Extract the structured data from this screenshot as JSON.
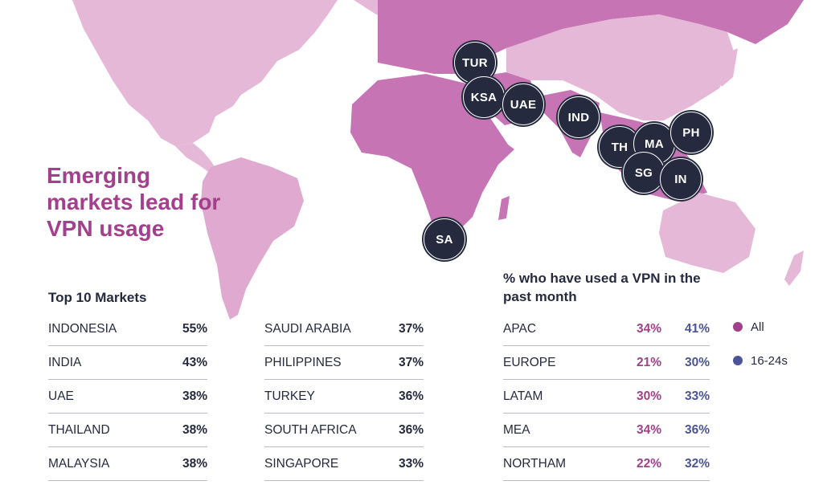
{
  "headline": "Emerging markets lead for VPN usage",
  "map": {
    "markers": [
      "TUR",
      "KSA",
      "UAE",
      "IND",
      "TH",
      "MA",
      "PH",
      "SG",
      "IN",
      "SA"
    ]
  },
  "top_markets": {
    "title": "Top 10 Markets",
    "left": [
      {
        "name": "INDONESIA",
        "value": "55%"
      },
      {
        "name": "INDIA",
        "value": "43%"
      },
      {
        "name": "UAE",
        "value": "38%"
      },
      {
        "name": "THAILAND",
        "value": "38%"
      },
      {
        "name": "MALAYSIA",
        "value": "38%"
      }
    ],
    "right": [
      {
        "name": "SAUDI ARABIA",
        "value": "37%"
      },
      {
        "name": "PHILIPPINES",
        "value": "37%"
      },
      {
        "name": "TURKEY",
        "value": "36%"
      },
      {
        "name": "SOUTH AFRICA",
        "value": "36%"
      },
      {
        "name": "SINGAPORE",
        "value": "33%"
      }
    ]
  },
  "regions": {
    "title": "% who have used a VPN in the past month",
    "rows": [
      {
        "name": "APAC",
        "all": "34%",
        "young": "41%"
      },
      {
        "name": "EUROPE",
        "all": "21%",
        "young": "30%"
      },
      {
        "name": "LATAM",
        "all": "30%",
        "young": "33%"
      },
      {
        "name": "MEA",
        "all": "34%",
        "young": "36%"
      },
      {
        "name": "NORTHAM",
        "all": "22%",
        "young": "32%"
      }
    ]
  },
  "legend": [
    {
      "label": "All",
      "color": "#a2408c"
    },
    {
      "label": "16-24s",
      "color": "#4b5499"
    }
  ],
  "colors": {
    "emerging_land": "#c774b5",
    "other_land": "#e6b8d8",
    "marker": "#262a3f"
  }
}
